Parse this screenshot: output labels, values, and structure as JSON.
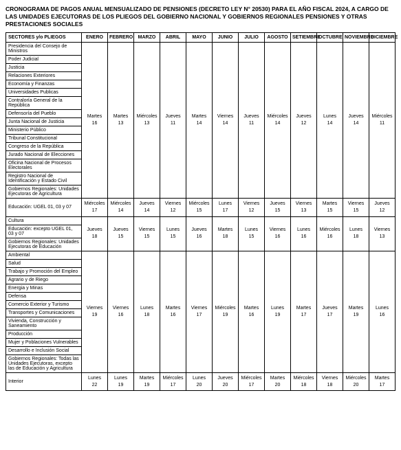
{
  "title": "CRONOGRAMA DE PAGOS ANUAL MENSUALIZADO DE PENSIONES (DECRETO LEY N° 20530) PARA EL AÑO FISCAL 2024, A CARGO DE LAS UNIDADES EJECUTORAS DE LOS PLIEGOS DEL GOBIERNO NACIONAL Y GOBIERNOS REGIONALES PENSIONES Y OTRAS PRESTACIONES SOCIALES",
  "headers": {
    "sector": "SECTORES y/o PLIEGOS",
    "months": [
      "ENERO",
      "FEBRERO",
      "MARZO",
      "ABRIL",
      "MAYO",
      "JUNIO",
      "JULIO",
      "AGOSTO",
      "SETIEMBRE",
      "OCTUBRE",
      "NOVIEMBRE",
      "DICIEMBRE"
    ]
  },
  "group1": {
    "sectors": [
      "Presidencia del Consejo de Ministros",
      "Poder Judicial",
      "Justicia",
      "Relaciones Exteriores",
      "Economía y Finanzas",
      "Universidades Publicas",
      "Contraloría General de la República",
      "Defensoría del Pueblo",
      "Junta Nacional de Justicia",
      "Ministerio Público",
      "Tribunal Constitucional",
      "Congreso de la República",
      "Jurado Nacional de Elecciones",
      "Oficina Nacional de Procesos Electorales",
      "Registro Nacional de Identificación y Estado Civil",
      "Gobiernos Regionales: Unidades Ejecutoras de Agricultura"
    ],
    "dates": [
      {
        "day": "Martes",
        "num": "16"
      },
      {
        "day": "Martes",
        "num": "13"
      },
      {
        "day": "Miércoles",
        "num": "13"
      },
      {
        "day": "Jueves",
        "num": "11"
      },
      {
        "day": "Martes",
        "num": "14"
      },
      {
        "day": "Viernes",
        "num": "14"
      },
      {
        "day": "Jueves",
        "num": "11"
      },
      {
        "day": "Miércoles",
        "num": "14"
      },
      {
        "day": "Jueves",
        "num": "12"
      },
      {
        "day": "Lunes",
        "num": "14"
      },
      {
        "day": "Jueves",
        "num": "14"
      },
      {
        "day": "Miércoles",
        "num": "11"
      }
    ]
  },
  "group2": {
    "sectors": [
      "Educación: UGEL 01, 03 y 07"
    ],
    "dates": [
      {
        "day": "Miércoles",
        "num": "17"
      },
      {
        "day": "Miércoles",
        "num": "14"
      },
      {
        "day": "Jueves",
        "num": "14"
      },
      {
        "day": "Viernes",
        "num": "12"
      },
      {
        "day": "Miércoles",
        "num": "15"
      },
      {
        "day": "Lunes",
        "num": "17"
      },
      {
        "day": "Viernes",
        "num": "12"
      },
      {
        "day": "Jueves",
        "num": "15"
      },
      {
        "day": "Viernes",
        "num": "13"
      },
      {
        "day": "Martes",
        "num": "15"
      },
      {
        "day": "Viernes",
        "num": "15"
      },
      {
        "day": "Jueves",
        "num": "12"
      }
    ]
  },
  "group3": {
    "sectors": [
      "Cultura",
      "Educación: excepto UGEL 01, 03 y 07",
      "Gobiernos Regionales: Unidades Ejecutoras de Educación"
    ],
    "dates": [
      {
        "day": "Jueves",
        "num": "18"
      },
      {
        "day": "Jueves",
        "num": "15"
      },
      {
        "day": "Viernes",
        "num": "15"
      },
      {
        "day": "Lunes",
        "num": "15"
      },
      {
        "day": "Jueves",
        "num": "16"
      },
      {
        "day": "Martes",
        "num": "18"
      },
      {
        "day": "Lunes",
        "num": "15"
      },
      {
        "day": "Viernes",
        "num": "16"
      },
      {
        "day": "Lunes",
        "num": "16"
      },
      {
        "day": "Miércoles",
        "num": "16"
      },
      {
        "day": "Lunes",
        "num": "18"
      },
      {
        "day": "Viernes",
        "num": "13"
      }
    ]
  },
  "group4": {
    "sectors": [
      "Ambiental",
      "Salud",
      "Trabajo y Promoción del Empleo",
      "Agrario y de Riego",
      "Energia y Minas",
      "Defensa",
      "Comercio Exterior y Turismo",
      "Transportes y Comunicaciones",
      "Vivienda, Construcción y Saneamiento",
      "Producción",
      "Mujer y Poblaciones Vulnerables",
      "Desarrollo e Inclusión Social",
      "Gobiernos Regionales: Todas las Unidades Ejecutoras, excepto las de Educación y Agricultura"
    ],
    "dates": [
      {
        "day": "Viernes",
        "num": "19"
      },
      {
        "day": "Viernes",
        "num": "16"
      },
      {
        "day": "Lunes",
        "num": "18"
      },
      {
        "day": "Martes",
        "num": "16"
      },
      {
        "day": "Viernes",
        "num": "17"
      },
      {
        "day": "Miércoles",
        "num": "19"
      },
      {
        "day": "Martes",
        "num": "16"
      },
      {
        "day": "Lunes",
        "num": "19"
      },
      {
        "day": "Martes",
        "num": "17"
      },
      {
        "day": "Jueves",
        "num": "17"
      },
      {
        "day": "Martes",
        "num": "19"
      },
      {
        "day": "Lunes",
        "num": "16"
      }
    ]
  },
  "group5": {
    "sectors": [
      "Interior"
    ],
    "dates": [
      {
        "day": "Lunes",
        "num": "22"
      },
      {
        "day": "Lunes",
        "num": "19"
      },
      {
        "day": "Martes",
        "num": "19"
      },
      {
        "day": "Miércoles",
        "num": "17"
      },
      {
        "day": "Lunes",
        "num": "20"
      },
      {
        "day": "Jueves",
        "num": "20"
      },
      {
        "day": "Miércoles",
        "num": "17"
      },
      {
        "day": "Martes",
        "num": "20"
      },
      {
        "day": "Miércoles",
        "num": "18"
      },
      {
        "day": "Viernes",
        "num": "18"
      },
      {
        "day": "Miércoles",
        "num": "20"
      },
      {
        "day": "Martes",
        "num": "17"
      }
    ]
  }
}
